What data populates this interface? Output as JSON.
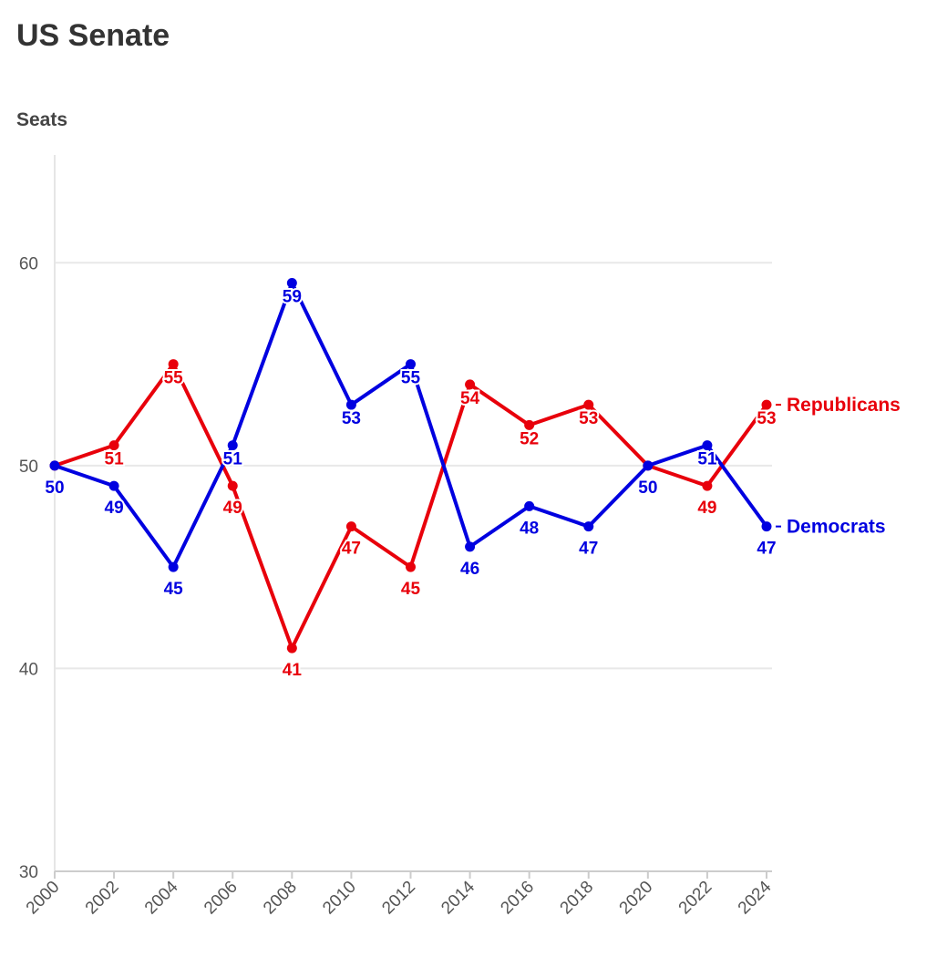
{
  "chart_data": {
    "type": "line",
    "title": "US Senate",
    "ylabel": "Seats",
    "xlabel": "",
    "x": [
      "2000",
      "2002",
      "2004",
      "2006",
      "2008",
      "2010",
      "2012",
      "2014",
      "2016",
      "2018",
      "2020",
      "2022",
      "2024"
    ],
    "ylim": [
      30,
      65
    ],
    "yticks": [
      30,
      40,
      50,
      60
    ],
    "grid": true,
    "legend": "inline-right",
    "series": [
      {
        "name": "Republicans",
        "color": "#e8000b",
        "values": [
          50,
          51,
          55,
          49,
          41,
          47,
          45,
          54,
          52,
          53,
          50,
          49,
          53
        ]
      },
      {
        "name": "Democrats",
        "color": "#0000e0",
        "values": [
          50,
          49,
          45,
          51,
          59,
          53,
          55,
          46,
          48,
          47,
          50,
          51,
          47
        ]
      }
    ]
  }
}
